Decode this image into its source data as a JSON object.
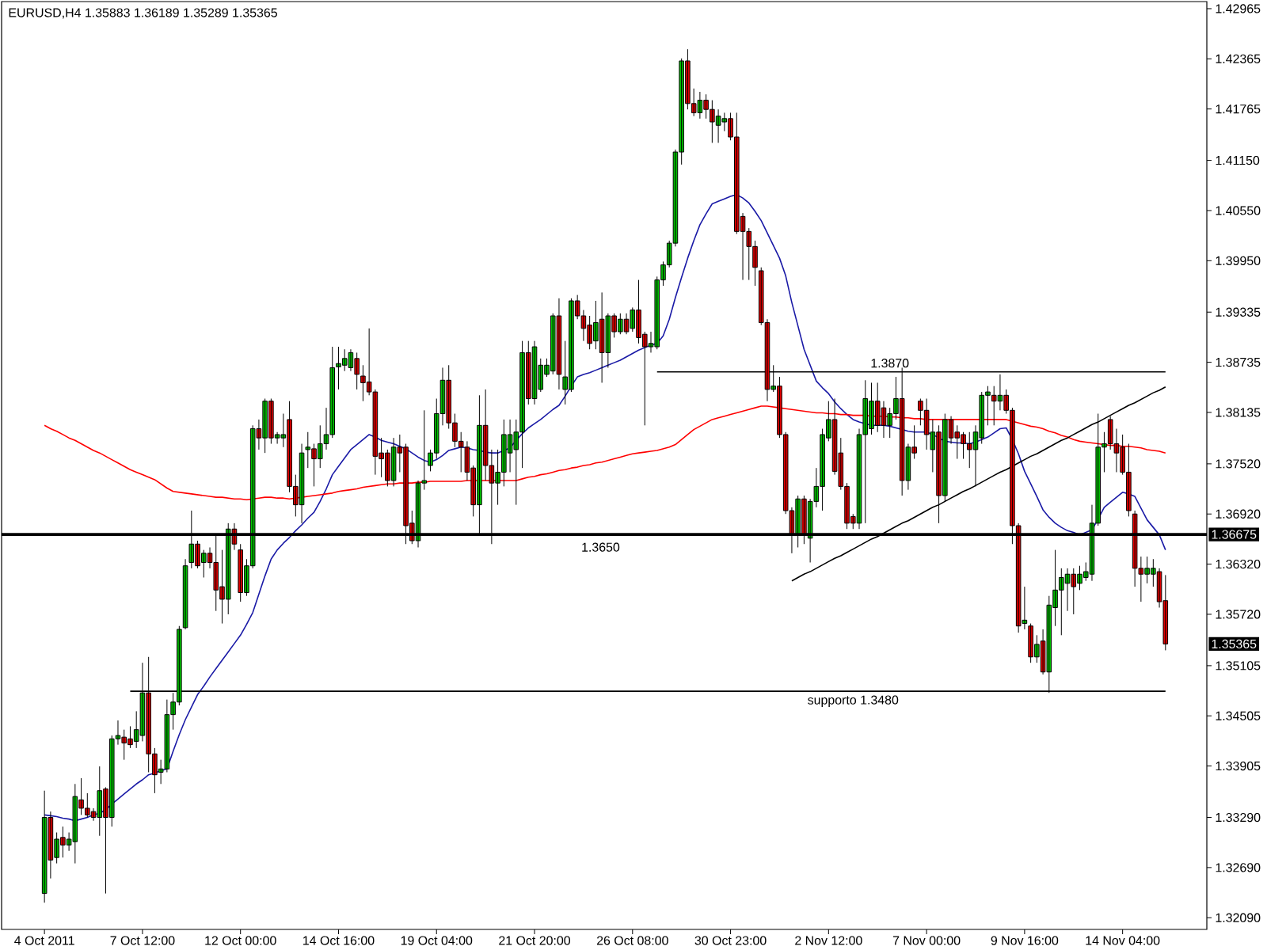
{
  "chart_data": {
    "type": "candlestick",
    "title": "EURUSD,H4 1.35883 1.36189 1.35289 1.35365",
    "categories": [
      "4 Oct 2011",
      null,
      null,
      null,
      null,
      null,
      null,
      null,
      null,
      null,
      null,
      null,
      null,
      null,
      null,
      null,
      "7 Oct 12:00",
      null,
      null,
      null,
      null,
      null,
      null,
      null,
      null,
      null,
      null,
      null,
      null,
      null,
      null,
      null,
      "12 Oct 00:00",
      null,
      null,
      null,
      null,
      null,
      null,
      null,
      null,
      null,
      null,
      null,
      null,
      null,
      null,
      null,
      "14 Oct 16:00",
      null,
      null,
      null,
      null,
      null,
      null,
      null,
      null,
      null,
      null,
      null,
      null,
      null,
      null,
      null,
      "19 Oct 04:00",
      null,
      null,
      null,
      null,
      null,
      null,
      null,
      null,
      null,
      null,
      null,
      null,
      null,
      null,
      null,
      "21 Oct 20:00",
      null,
      null,
      null,
      null,
      null,
      null,
      null,
      null,
      null,
      null,
      null,
      null,
      null,
      null,
      null,
      "26 Oct 08:00",
      null,
      null,
      null,
      null,
      null,
      null,
      null,
      null,
      null,
      null,
      null,
      null,
      null,
      null,
      null,
      "30 Oct 23:00",
      null,
      null,
      null,
      null,
      null,
      null,
      null,
      null,
      null,
      null,
      null,
      null,
      null,
      null,
      null,
      "2 Nov 12:00",
      null,
      null,
      null,
      null,
      null,
      null,
      null,
      null,
      null,
      null,
      null,
      null,
      null,
      null,
      null,
      "7 Nov 00:00",
      null,
      null,
      null,
      null,
      null,
      null,
      null,
      null,
      null,
      null,
      null,
      null,
      null,
      null,
      null,
      "9 Nov 16:00",
      null,
      null,
      null,
      null,
      null,
      null,
      null,
      null,
      null,
      null,
      null,
      null,
      null,
      null,
      null,
      "14 Nov 04:00",
      null,
      null,
      null,
      null,
      null,
      null,
      null
    ],
    "ohlc": [
      [
        1.3238,
        1.3361,
        1.3227,
        1.3329
      ],
      [
        1.3329,
        1.3336,
        1.3256,
        1.3278
      ],
      [
        1.3281,
        1.3311,
        1.3274,
        1.3303
      ],
      [
        1.3305,
        1.3318,
        1.3281,
        1.3296
      ],
      [
        1.3296,
        1.3311,
        1.3289,
        1.3303
      ],
      [
        1.33,
        1.3369,
        1.3274,
        1.3354
      ],
      [
        1.335,
        1.3376,
        1.3332,
        1.334
      ],
      [
        1.334,
        1.3358,
        1.3329,
        1.3332
      ],
      [
        1.3336,
        1.334,
        1.3325,
        1.3329
      ],
      [
        1.3329,
        1.339,
        1.3307,
        1.3361
      ],
      [
        1.3363,
        1.3365,
        1.3238,
        1.3329
      ],
      [
        1.3329,
        1.3427,
        1.3318,
        1.3423
      ],
      [
        1.3423,
        1.3445,
        1.3416,
        1.3427
      ],
      [
        1.3425,
        1.3434,
        1.3398,
        1.3418
      ],
      [
        1.3423,
        1.3438,
        1.3412,
        1.3416
      ],
      [
        1.342,
        1.3456,
        1.3412,
        1.3434
      ],
      [
        1.3427,
        1.3514,
        1.342,
        1.3478
      ],
      [
        1.3478,
        1.3521,
        1.3383,
        1.3405
      ],
      [
        1.3405,
        1.3412,
        1.3358,
        1.338
      ],
      [
        1.3383,
        1.3398,
        1.3369,
        1.3387
      ],
      [
        1.3387,
        1.347,
        1.3383,
        1.3452
      ],
      [
        1.3452,
        1.3478,
        1.3434,
        1.3467
      ],
      [
        1.3467,
        1.3558,
        1.3463,
        1.3554
      ],
      [
        1.3556,
        1.3638,
        1.3554,
        1.363
      ],
      [
        1.3634,
        1.3696,
        1.3627,
        1.3656
      ],
      [
        1.3656,
        1.366,
        1.3627,
        1.363
      ],
      [
        1.3634,
        1.3649,
        1.3616,
        1.3645
      ],
      [
        1.3645,
        1.3652,
        1.3627,
        1.3634
      ],
      [
        1.3634,
        1.3667,
        1.3576,
        1.3601
      ],
      [
        1.3605,
        1.3649,
        1.3561,
        1.359
      ],
      [
        1.359,
        1.3681,
        1.3572,
        1.3674
      ],
      [
        1.3674,
        1.3681,
        1.3649,
        1.3656
      ],
      [
        1.3649,
        1.3656,
        1.3587,
        1.3598
      ],
      [
        1.3598,
        1.3638,
        1.3594,
        1.363
      ],
      [
        1.363,
        1.3798,
        1.3627,
        1.3794
      ],
      [
        1.3794,
        1.3805,
        1.3769,
        1.3783
      ],
      [
        1.3783,
        1.383,
        1.3765,
        1.3827
      ],
      [
        1.3827,
        1.383,
        1.3776,
        1.3783
      ],
      [
        1.3783,
        1.379,
        1.3776,
        1.3787
      ],
      [
        1.3783,
        1.3812,
        1.3772,
        1.3787
      ],
      [
        1.3805,
        1.3827,
        1.3718,
        1.3725
      ],
      [
        1.3725,
        1.3739,
        1.3689,
        1.3703
      ],
      [
        1.3703,
        1.3776,
        1.3681,
        1.3765
      ],
      [
        1.3769,
        1.379,
        1.3747,
        1.3772
      ],
      [
        1.377,
        1.3776,
        1.3725,
        1.3758
      ],
      [
        1.3758,
        1.3798,
        1.3747,
        1.3776
      ],
      [
        1.3776,
        1.3819,
        1.3769,
        1.3787
      ],
      [
        1.3787,
        1.3892,
        1.3783,
        1.3867
      ],
      [
        1.3868,
        1.3892,
        1.3841,
        1.3872
      ],
      [
        1.387,
        1.3889,
        1.3863,
        1.3878
      ],
      [
        1.3867,
        1.3889,
        1.3863,
        1.3885
      ],
      [
        1.3878,
        1.3885,
        1.3841,
        1.3859
      ],
      [
        1.3857,
        1.387,
        1.3827,
        1.3849
      ],
      [
        1.385,
        1.3914,
        1.3834,
        1.3838
      ],
      [
        1.3838,
        1.3841,
        1.3739,
        1.3761
      ],
      [
        1.3765,
        1.3783,
        1.3736,
        1.3758
      ],
      [
        1.3765,
        1.3769,
        1.3725,
        1.3732
      ],
      [
        1.3732,
        1.3783,
        1.3725,
        1.3772
      ],
      [
        1.3772,
        1.3787,
        1.3742,
        1.3765
      ],
      [
        1.3772,
        1.3776,
        1.3656,
        1.3678
      ],
      [
        1.3681,
        1.3696,
        1.3656,
        1.366
      ],
      [
        1.366,
        1.3732,
        1.3652,
        1.3729
      ],
      [
        1.3729,
        1.3816,
        1.3721,
        1.3732
      ],
      [
        1.375,
        1.3769,
        1.3743,
        1.3765
      ],
      [
        1.3765,
        1.383,
        1.3758,
        1.3812
      ],
      [
        1.3812,
        1.3867,
        1.3798,
        1.3852
      ],
      [
        1.3852,
        1.387,
        1.3794,
        1.3801
      ],
      [
        1.3801,
        1.3812,
        1.3772,
        1.3779
      ],
      [
        1.3779,
        1.379,
        1.3742,
        1.3772
      ],
      [
        1.3772,
        1.3779,
        1.3732,
        1.3742
      ],
      [
        1.3747,
        1.375,
        1.3689,
        1.3703
      ],
      [
        1.3703,
        1.3834,
        1.3667,
        1.3798
      ],
      [
        1.3798,
        1.3841,
        1.3732,
        1.375
      ],
      [
        1.375,
        1.3769,
        1.3656,
        1.3729
      ],
      [
        1.3729,
        1.3769,
        1.3703,
        1.3742
      ],
      [
        1.3742,
        1.3805,
        1.3725,
        1.3787
      ],
      [
        1.3765,
        1.3805,
        1.3742,
        1.3787
      ],
      [
        1.3769,
        1.3805,
        1.3703,
        1.379
      ],
      [
        1.379,
        1.3899,
        1.3747,
        1.3885
      ],
      [
        1.3885,
        1.3899,
        1.3823,
        1.383
      ],
      [
        1.383,
        1.3899,
        1.3823,
        1.3892
      ],
      [
        1.3841,
        1.3878,
        1.3838,
        1.387
      ],
      [
        1.3859,
        1.3878,
        1.3856,
        1.387
      ],
      [
        1.3863,
        1.3932,
        1.3859,
        1.3929
      ],
      [
        1.3929,
        1.395,
        1.3841,
        1.3859
      ],
      [
        1.3841,
        1.3899,
        1.3823,
        1.3856
      ],
      [
        1.3841,
        1.395,
        1.3838,
        1.3947
      ],
      [
        1.3947,
        1.3954,
        1.3925,
        1.3929
      ],
      [
        1.3929,
        1.3936,
        1.3899,
        1.3914
      ],
      [
        1.3918,
        1.3929,
        1.3889,
        1.3896
      ],
      [
        1.3899,
        1.3947,
        1.3889,
        1.3921
      ],
      [
        1.3925,
        1.3957,
        1.3849,
        1.3885
      ],
      [
        1.3885,
        1.3932,
        1.3867,
        1.3929
      ],
      [
        1.3929,
        1.3932,
        1.3903,
        1.391
      ],
      [
        1.391,
        1.3932,
        1.3907,
        1.3925
      ],
      [
        1.3925,
        1.3932,
        1.3907,
        1.391
      ],
      [
        1.3914,
        1.3939,
        1.391,
        1.3936
      ],
      [
        1.3936,
        1.3972,
        1.3896,
        1.3903
      ],
      [
        1.3907,
        1.391,
        1.3798,
        1.3892
      ],
      [
        1.3892,
        1.391,
        1.3885,
        1.3896
      ],
      [
        1.3892,
        1.3976,
        1.3889,
        1.3972
      ],
      [
        1.3972,
        1.3994,
        1.3965,
        1.399
      ],
      [
        1.399,
        1.4019,
        1.3987,
        1.4016
      ],
      [
        1.4016,
        1.4128,
        1.4012,
        1.4125
      ],
      [
        1.4125,
        1.4237,
        1.411,
        1.4234
      ],
      [
        1.4234,
        1.4248,
        1.4176,
        1.4183
      ],
      [
        1.4183,
        1.4201,
        1.4168,
        1.4172
      ],
      [
        1.4172,
        1.4197,
        1.4165,
        1.4187
      ],
      [
        1.4187,
        1.4194,
        1.4165,
        1.4176
      ],
      [
        1.4176,
        1.4187,
        1.4136,
        1.4161
      ],
      [
        1.4157,
        1.4176,
        1.4136,
        1.4168
      ],
      [
        1.4161,
        1.4172,
        1.415,
        1.4165
      ],
      [
        1.4165,
        1.4172,
        1.4139,
        1.4143
      ],
      [
        1.4143,
        1.4172,
        1.4027,
        1.403
      ],
      [
        1.4048,
        1.4052,
        1.3972,
        1.403
      ],
      [
        1.403,
        1.4034,
        1.3972,
        1.4012
      ],
      [
        1.4012,
        1.4019,
        1.3965,
        1.3987
      ],
      [
        1.3983,
        1.3987,
        1.3918,
        1.3921
      ],
      [
        1.3921,
        1.3925,
        1.3827,
        1.3841
      ],
      [
        1.3841,
        1.387,
        1.3838,
        1.3845
      ],
      [
        1.3845,
        1.3856,
        1.3783,
        1.3787
      ],
      [
        1.3787,
        1.379,
        1.3692,
        1.3696
      ],
      [
        1.3696,
        1.37,
        1.3645,
        1.3667
      ],
      [
        1.3667,
        1.3714,
        1.3652,
        1.371
      ],
      [
        1.371,
        1.3714,
        1.3656,
        1.3667
      ],
      [
        1.3663,
        1.371,
        1.3634,
        1.3707
      ],
      [
        1.3707,
        1.3747,
        1.37,
        1.3725
      ],
      [
        1.3725,
        1.3794,
        1.3696,
        1.3787
      ],
      [
        1.3783,
        1.3827,
        1.3779,
        1.3805
      ],
      [
        1.3805,
        1.383,
        1.3739,
        1.3743
      ],
      [
        1.3765,
        1.3783,
        1.3721,
        1.3725
      ],
      [
        1.3725,
        1.3729,
        1.3674,
        1.3681
      ],
      [
        1.3689,
        1.3692,
        1.3674,
        1.3681
      ],
      [
        1.3681,
        1.3794,
        1.3674,
        1.3787
      ],
      [
        1.3787,
        1.3852,
        1.3681,
        1.383
      ],
      [
        1.3794,
        1.3849,
        1.3787,
        1.3827
      ],
      [
        1.3827,
        1.3849,
        1.379,
        1.3798
      ],
      [
        1.3819,
        1.3827,
        1.3783,
        1.3798
      ],
      [
        1.3798,
        1.3819,
        1.3783,
        1.3812
      ],
      [
        1.3812,
        1.3856,
        1.3805,
        1.383
      ],
      [
        1.383,
        1.3867,
        1.3714,
        1.3732
      ],
      [
        1.3732,
        1.3776,
        1.3721,
        1.3772
      ],
      [
        1.3772,
        1.3798,
        1.3758,
        1.3765
      ],
      [
        1.3827,
        1.383,
        1.3798,
        1.3816
      ],
      [
        1.3816,
        1.383,
        1.3769,
        1.3787
      ],
      [
        1.3769,
        1.3805,
        1.3742,
        1.379
      ],
      [
        1.379,
        1.3798,
        1.3681,
        1.3714
      ],
      [
        1.3714,
        1.3812,
        1.3707,
        1.3805
      ],
      [
        1.3805,
        1.3809,
        1.3776,
        1.3783
      ],
      [
        1.379,
        1.3798,
        1.3758,
        1.3783
      ],
      [
        1.3787,
        1.379,
        1.3758,
        1.3776
      ],
      [
        1.3776,
        1.379,
        1.3747,
        1.3769
      ],
      [
        1.3769,
        1.3798,
        1.3725,
        1.379
      ],
      [
        1.3783,
        1.3838,
        1.3776,
        1.3834
      ],
      [
        1.3834,
        1.3845,
        1.3798,
        1.3838
      ],
      [
        1.3834,
        1.3845,
        1.3798,
        1.3827
      ],
      [
        1.3827,
        1.3859,
        1.3816,
        1.3834
      ],
      [
        1.3834,
        1.3841,
        1.3812,
        1.3816
      ],
      [
        1.3816,
        1.3819,
        1.3656,
        1.3678
      ],
      [
        1.3678,
        1.3681,
        1.355,
        1.3558
      ],
      [
        1.3561,
        1.3605,
        1.3554,
        1.3565
      ],
      [
        1.3558,
        1.3561,
        1.3514,
        1.3521
      ],
      [
        1.3521,
        1.3547,
        1.3514,
        1.3536
      ],
      [
        1.354,
        1.3554,
        1.35,
        1.3503
      ],
      [
        1.3503,
        1.3594,
        1.3478,
        1.3583
      ],
      [
        1.358,
        1.3649,
        1.3558,
        1.3601
      ],
      [
        1.3601,
        1.3627,
        1.3547,
        1.3616
      ],
      [
        1.3609,
        1.3627,
        1.3576,
        1.362
      ],
      [
        1.362,
        1.3627,
        1.3572,
        1.3605
      ],
      [
        1.3609,
        1.363,
        1.3601,
        1.362
      ],
      [
        1.3616,
        1.3634,
        1.3612,
        1.3623
      ],
      [
        1.362,
        1.3703,
        1.3612,
        1.3681
      ],
      [
        1.3681,
        1.3812,
        1.3678,
        1.3772
      ],
      [
        1.3772,
        1.379,
        1.3742,
        1.3776
      ],
      [
        1.3805,
        1.3809,
        1.3769,
        1.3776
      ],
      [
        1.3776,
        1.3794,
        1.3742,
        1.3765
      ],
      [
        1.3772,
        1.3787,
        1.3739,
        1.3742
      ],
      [
        1.3742,
        1.3776,
        1.3689,
        1.3696
      ],
      [
        1.3692,
        1.3696,
        1.3605,
        1.3627
      ],
      [
        1.3627,
        1.3641,
        1.3587,
        1.362
      ],
      [
        1.362,
        1.3641,
        1.3609,
        1.3627
      ],
      [
        1.362,
        1.3638,
        1.3605,
        1.3627
      ],
      [
        1.3623,
        1.3627,
        1.358,
        1.3587
      ],
      [
        1.35883,
        1.36189,
        1.35289,
        1.35365
      ]
    ],
    "series": [
      {
        "type": "line",
        "color": "#1a1aa6",
        "values": [
          1.3332,
          1.3331,
          1.333,
          1.3328,
          1.3327,
          1.3325,
          1.3327,
          1.3329,
          1.3332,
          1.3334,
          1.3338,
          1.3345,
          1.3351,
          1.3357,
          1.3363,
          1.3369,
          1.3374,
          1.338,
          1.3382,
          1.3385,
          1.3387,
          1.3408,
          1.3428,
          1.3446,
          1.3461,
          1.3476,
          1.3486,
          1.3497,
          1.3507,
          1.3517,
          1.3527,
          1.3537,
          1.3547,
          1.356,
          1.3574,
          1.3596,
          1.3618,
          1.3638,
          1.3649,
          1.3657,
          1.3664,
          1.3672,
          1.3679,
          1.3687,
          1.3694,
          1.3707,
          1.3722,
          1.3739,
          1.3749,
          1.3759,
          1.3769,
          1.3775,
          1.3781,
          1.3787,
          1.3784,
          1.378,
          1.3778,
          1.3776,
          1.3773,
          1.377,
          1.3765,
          1.376,
          1.3756,
          1.3754,
          1.3757,
          1.3762,
          1.3768,
          1.377,
          1.3772,
          1.3771,
          1.3769,
          1.3768,
          1.3766,
          1.3765,
          1.3765,
          1.3768,
          1.3771,
          1.378,
          1.3788,
          1.3795,
          1.38,
          1.3805,
          1.3811,
          1.3817,
          1.3822,
          1.3833,
          1.3845,
          1.3856,
          1.3859,
          1.3861,
          1.3864,
          1.3867,
          1.387,
          1.3873,
          1.3876,
          1.388,
          1.3884,
          1.3888,
          1.3891,
          1.3894,
          1.3896,
          1.3905,
          1.3925,
          1.3951,
          1.3975,
          1.3998,
          1.4019,
          1.4038,
          1.4051,
          1.4063,
          1.4066,
          1.4069,
          1.4072,
          1.4074,
          1.407,
          1.4064,
          1.4054,
          1.4043,
          1.4028,
          1.4013,
          1.3998,
          1.3977,
          1.3945,
          1.3917,
          1.3889,
          1.387,
          1.3851,
          1.3843,
          1.3836,
          1.3826,
          1.3818,
          1.3811,
          1.3805,
          1.3802,
          1.38,
          1.3798,
          1.3798,
          1.3798,
          1.3797,
          1.3795,
          1.3793,
          1.3791,
          1.379,
          1.379,
          1.379,
          1.3787,
          1.3783,
          1.3779,
          1.3778,
          1.3777,
          1.3777,
          1.3776,
          1.3778,
          1.3781,
          1.3784,
          1.3789,
          1.3794,
          1.3795,
          1.3781,
          1.3764,
          1.3743,
          1.3728,
          1.3713,
          1.3697,
          1.3688,
          1.3681,
          1.3676,
          1.3672,
          1.367,
          1.3667,
          1.367,
          1.3673,
          1.3686,
          1.37,
          1.3706,
          1.3712,
          1.3718,
          1.3716,
          1.3713,
          1.3699,
          1.3685,
          1.3676,
          1.3667,
          1.3649
        ]
      },
      {
        "type": "line",
        "color": "#ff0000",
        "values": [
          1.3798,
          1.3794,
          1.3791,
          1.3787,
          1.3783,
          1.378,
          1.3776,
          1.3772,
          1.3768,
          1.3765,
          1.3761,
          1.3757,
          1.3753,
          1.3749,
          1.3745,
          1.3742,
          1.3739,
          1.3736,
          1.3733,
          1.3728,
          1.3723,
          1.3719,
          1.3718,
          1.3717,
          1.3716,
          1.3715,
          1.3714,
          1.3713,
          1.3712,
          1.3712,
          1.3711,
          1.371,
          1.371,
          1.3709,
          1.371,
          1.3711,
          1.3712,
          1.3712,
          1.3711,
          1.3711,
          1.371,
          1.3711,
          1.3712,
          1.3713,
          1.3714,
          1.3715,
          1.3716,
          1.3717,
          1.3719,
          1.372,
          1.3721,
          1.3722,
          1.3724,
          1.3725,
          1.3726,
          1.3727,
          1.3728,
          1.3728,
          1.3729,
          1.3729,
          1.3729,
          1.373,
          1.373,
          1.3731,
          1.3731,
          1.3731,
          1.3731,
          1.3731,
          1.3731,
          1.3732,
          1.3732,
          1.3732,
          1.3732,
          1.3732,
          1.3732,
          1.3732,
          1.3732,
          1.3732,
          1.3734,
          1.3736,
          1.3737,
          1.3739,
          1.374,
          1.3742,
          1.3744,
          1.3745,
          1.3747,
          1.3748,
          1.375,
          1.3751,
          1.3753,
          1.3754,
          1.3756,
          1.3758,
          1.376,
          1.3762,
          1.3764,
          1.3765,
          1.3766,
          1.3767,
          1.3768,
          1.377,
          1.3772,
          1.3775,
          1.3781,
          1.3787,
          1.3793,
          1.3797,
          1.3801,
          1.3805,
          1.3807,
          1.3809,
          1.3811,
          1.3813,
          1.3815,
          1.3817,
          1.3819,
          1.3821,
          1.3821,
          1.382,
          1.3819,
          1.3818,
          1.3817,
          1.3816,
          1.3815,
          1.3814,
          1.3813,
          1.3813,
          1.3812,
          1.3812,
          1.3811,
          1.3811,
          1.381,
          1.381,
          1.381,
          1.3809,
          1.3809,
          1.3809,
          1.3808,
          1.3808,
          1.3807,
          1.3807,
          1.3806,
          1.3806,
          1.3805,
          1.3805,
          1.3805,
          1.3805,
          1.3805,
          1.3805,
          1.3805,
          1.3805,
          1.3805,
          1.3805,
          1.3805,
          1.3805,
          1.3805,
          1.3805,
          1.3803,
          1.3801,
          1.3799,
          1.3797,
          1.3796,
          1.3794,
          1.3791,
          1.3789,
          1.3786,
          1.3784,
          1.3781,
          1.3779,
          1.3778,
          1.3777,
          1.3776,
          1.3775,
          1.3774,
          1.3774,
          1.3773,
          1.3773,
          1.3772,
          1.3771,
          1.3769,
          1.3768,
          1.3767,
          1.3765
        ]
      },
      {
        "type": "line",
        "name": "1.3870",
        "color": "#000000",
        "values": [
          null,
          null,
          null,
          null,
          null,
          null,
          null,
          null,
          null,
          null,
          null,
          null,
          null,
          null,
          null,
          null,
          null,
          null,
          null,
          null,
          null,
          null,
          null,
          null,
          null,
          null,
          null,
          null,
          null,
          null,
          null,
          null,
          null,
          null,
          null,
          null,
          null,
          null,
          null,
          null,
          null,
          null,
          null,
          null,
          null,
          null,
          null,
          null,
          null,
          null,
          null,
          null,
          null,
          null,
          null,
          null,
          null,
          null,
          null,
          null,
          null,
          null,
          null,
          null,
          null,
          null,
          null,
          null,
          null,
          null,
          null,
          null,
          null,
          null,
          null,
          null,
          null,
          null,
          null,
          null,
          null,
          null,
          null,
          null,
          null,
          null,
          null,
          null,
          null,
          null,
          null,
          null,
          null,
          null,
          null,
          null,
          null,
          null,
          null,
          null,
          1.3862,
          1.3862,
          1.3862,
          1.3862,
          1.3862,
          1.3862,
          1.3862,
          1.3862,
          1.3862,
          1.3862,
          1.3862,
          1.3862,
          1.3862,
          1.3862,
          1.3862,
          1.3862,
          1.3862,
          1.3862,
          1.3862,
          1.3862,
          1.3862,
          1.3862,
          1.3862,
          1.3862,
          1.3862,
          1.3862,
          1.3862,
          1.3862,
          1.3862,
          1.3862,
          1.3862,
          1.3862,
          1.3862,
          1.3862,
          1.3862,
          1.3862,
          1.3862,
          1.3862,
          1.3862,
          1.3862,
          1.3862,
          1.3862,
          1.3862,
          1.3862,
          1.3862,
          1.3862,
          1.3862,
          1.3862,
          1.3862,
          1.3862,
          1.3862,
          1.3862,
          1.3862,
          1.3862,
          1.3862,
          1.3862,
          1.3862,
          1.3862,
          1.3862,
          1.3862,
          1.3862,
          1.3862,
          1.3862,
          1.3862,
          1.3862,
          1.3862,
          1.3862,
          1.3862,
          1.3862,
          1.3862,
          1.3862,
          1.3862,
          1.3862,
          1.3862,
          1.3862,
          1.3862,
          1.3862,
          1.3862,
          1.3862,
          1.3862,
          1.3862,
          1.3862,
          1.3862,
          1.3862
        ]
      },
      {
        "type": "line",
        "name": "supporto 1.3480",
        "color": "#000000",
        "values": [
          null,
          null,
          null,
          null,
          null,
          null,
          null,
          null,
          null,
          null,
          null,
          null,
          null,
          null,
          1.348,
          1.348,
          1.348,
          1.348,
          1.348,
          1.348,
          1.348,
          1.348,
          1.348,
          1.348,
          1.348,
          1.348,
          1.348,
          1.348,
          1.348,
          1.348,
          1.348,
          1.348,
          1.348,
          1.348,
          1.348,
          1.348,
          1.348,
          1.348,
          1.348,
          1.348,
          1.348,
          1.348,
          1.348,
          1.348,
          1.348,
          1.348,
          1.348,
          1.348,
          1.348,
          1.348,
          1.348,
          1.348,
          1.348,
          1.348,
          1.348,
          1.348,
          1.348,
          1.348,
          1.348,
          1.348,
          1.348,
          1.348,
          1.348,
          1.348,
          1.348,
          1.348,
          1.348,
          1.348,
          1.348,
          1.348,
          1.348,
          1.348,
          1.348,
          1.348,
          1.348,
          1.348,
          1.348,
          1.348,
          1.348,
          1.348,
          1.348,
          1.348,
          1.348,
          1.348,
          1.348,
          1.348,
          1.348,
          1.348,
          1.348,
          1.348,
          1.348,
          1.348,
          1.348,
          1.348,
          1.348,
          1.348,
          1.348,
          1.348,
          1.348,
          1.348,
          1.348,
          1.348,
          1.348,
          1.348,
          1.348,
          1.348,
          1.348,
          1.348,
          1.348,
          1.348,
          1.348,
          1.348,
          1.348,
          1.348,
          1.348,
          1.348,
          1.348,
          1.348,
          1.348,
          1.348,
          1.348,
          1.348,
          1.348,
          1.348,
          1.348,
          1.348,
          1.348,
          1.348,
          1.348,
          1.348,
          1.348,
          1.348,
          1.348,
          1.348,
          1.348,
          1.348,
          1.348,
          1.348,
          1.348,
          1.348,
          1.348,
          1.348,
          1.348,
          1.348,
          1.348,
          1.348,
          1.348,
          1.348,
          1.348,
          1.348,
          1.348,
          1.348,
          1.348,
          1.348,
          1.348,
          1.348,
          1.348,
          1.348,
          1.348,
          1.348,
          1.348,
          1.348,
          1.348,
          1.348,
          1.348,
          1.348,
          1.348,
          1.348,
          1.348,
          1.348,
          1.348,
          1.348,
          1.348,
          1.348,
          1.348,
          1.348,
          1.348,
          1.348,
          1.348,
          1.348,
          1.348,
          1.348,
          1.348,
          1.348
        ]
      },
      {
        "type": "line",
        "color": "#000000",
        "values": [
          null,
          null,
          null,
          null,
          null,
          null,
          null,
          null,
          null,
          null,
          null,
          null,
          null,
          null,
          null,
          null,
          null,
          null,
          null,
          null,
          null,
          null,
          null,
          null,
          null,
          null,
          null,
          null,
          null,
          null,
          null,
          null,
          null,
          null,
          null,
          null,
          null,
          null,
          null,
          null,
          null,
          null,
          null,
          null,
          null,
          null,
          null,
          null,
          null,
          null,
          null,
          null,
          null,
          null,
          null,
          null,
          null,
          null,
          null,
          null,
          null,
          null,
          null,
          null,
          null,
          null,
          null,
          null,
          null,
          null,
          null,
          null,
          null,
          null,
          null,
          null,
          null,
          null,
          null,
          null,
          null,
          null,
          null,
          null,
          null,
          null,
          null,
          null,
          null,
          null,
          null,
          null,
          null,
          null,
          null,
          null,
          null,
          null,
          null,
          null,
          null,
          null,
          null,
          null,
          null,
          null,
          null,
          null,
          null,
          null,
          null,
          null,
          null,
          null,
          null,
          null,
          null,
          null,
          null,
          null,
          null,
          null,
          1.3612,
          1.3616,
          1.362,
          1.3623,
          1.3627,
          1.3631,
          1.3635,
          1.3639,
          1.3642,
          1.3646,
          1.365,
          1.3654,
          1.3658,
          1.3662,
          1.3665,
          1.3669,
          1.3673,
          1.3677,
          1.3681,
          1.3684,
          1.3688,
          1.3692,
          1.3696,
          1.37,
          1.3703,
          1.3707,
          1.3711,
          1.3715,
          1.3719,
          1.3722,
          1.3726,
          1.373,
          1.3734,
          1.3738,
          1.3742,
          1.3745,
          1.3749,
          1.3753,
          1.3757,
          1.3761,
          1.3764,
          1.3768,
          1.3772,
          1.3776,
          1.378,
          1.3783,
          1.3787,
          1.3791,
          1.3795,
          1.3799,
          1.3802,
          1.3806,
          1.381,
          1.3814,
          1.3818,
          1.3822,
          1.3825,
          1.3829,
          1.3833,
          1.3837,
          1.384,
          1.3844
        ]
      }
    ],
    "ylim": [
      1.3195,
      1.4305
    ],
    "yticks": [
      1.42965,
      1.42365,
      1.41765,
      {
        "value": 1.4115,
        "label": "1.41150"
      },
      {
        "value": 1.4055,
        "label": "1.40550"
      },
      {
        "value": 1.3995,
        "label": "1.39950"
      },
      1.39335,
      1.38735,
      1.38135,
      {
        "value": 1.3752,
        "label": "1.37520"
      },
      {
        "value": 1.3692,
        "label": "1.36920"
      },
      {
        "value": 1.3632,
        "label": "1.36320"
      },
      {
        "value": 1.3572,
        "label": "1.35720"
      },
      1.35105,
      1.34505,
      1.33905,
      {
        "value": 1.3329,
        "label": "1.33290"
      },
      {
        "value": 1.3269,
        "label": "1.32690"
      },
      {
        "value": 1.3209,
        "label": "1.32090"
      }
    ],
    "ref_lines": [
      {
        "axis": "y",
        "value": 1.36675,
        "label": "1.36675"
      }
    ],
    "annotations": [
      "1.3650",
      "1.35365"
    ]
  }
}
